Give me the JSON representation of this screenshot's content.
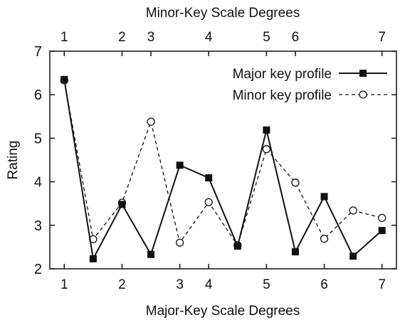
{
  "chart_data": {
    "type": "line",
    "xlabel_bottom": "Major-Key Scale Degrees",
    "xlabel_top": "Minor-Key Scale Degrees",
    "ylabel": "Rating",
    "ylim": [
      2,
      7
    ],
    "xlim": [
      0.5,
      12.5
    ],
    "y_ticks": [
      "2",
      "3",
      "4",
      "5",
      "6",
      "7"
    ],
    "bottom_ticks": [
      {
        "x": 1,
        "label": "1"
      },
      {
        "x": 3,
        "label": "2"
      },
      {
        "x": 5,
        "label": "3"
      },
      {
        "x": 6,
        "label": "4"
      },
      {
        "x": 8,
        "label": "5"
      },
      {
        "x": 10,
        "label": "6"
      },
      {
        "x": 12,
        "label": "7"
      }
    ],
    "top_ticks": [
      {
        "x": 1,
        "label": "1"
      },
      {
        "x": 3,
        "label": "2"
      },
      {
        "x": 4,
        "label": "3"
      },
      {
        "x": 6,
        "label": "4"
      },
      {
        "x": 8,
        "label": "5"
      },
      {
        "x": 9,
        "label": "6"
      },
      {
        "x": 12,
        "label": "7"
      }
    ],
    "x": [
      1,
      2,
      3,
      4,
      5,
      6,
      7,
      8,
      9,
      10,
      11,
      12
    ],
    "series": [
      {
        "name": "Major key profile",
        "style": "solid-square",
        "values": [
          6.35,
          2.23,
          3.48,
          2.33,
          4.38,
          4.09,
          2.52,
          5.19,
          2.39,
          3.66,
          2.29,
          2.88
        ]
      },
      {
        "name": "Minor key profile",
        "style": "dashed-circle",
        "values": [
          6.33,
          2.68,
          3.52,
          5.38,
          2.6,
          3.53,
          2.54,
          4.75,
          3.98,
          2.69,
          3.34,
          3.17
        ]
      }
    ],
    "legend_position": "top-right",
    "grid": false
  }
}
